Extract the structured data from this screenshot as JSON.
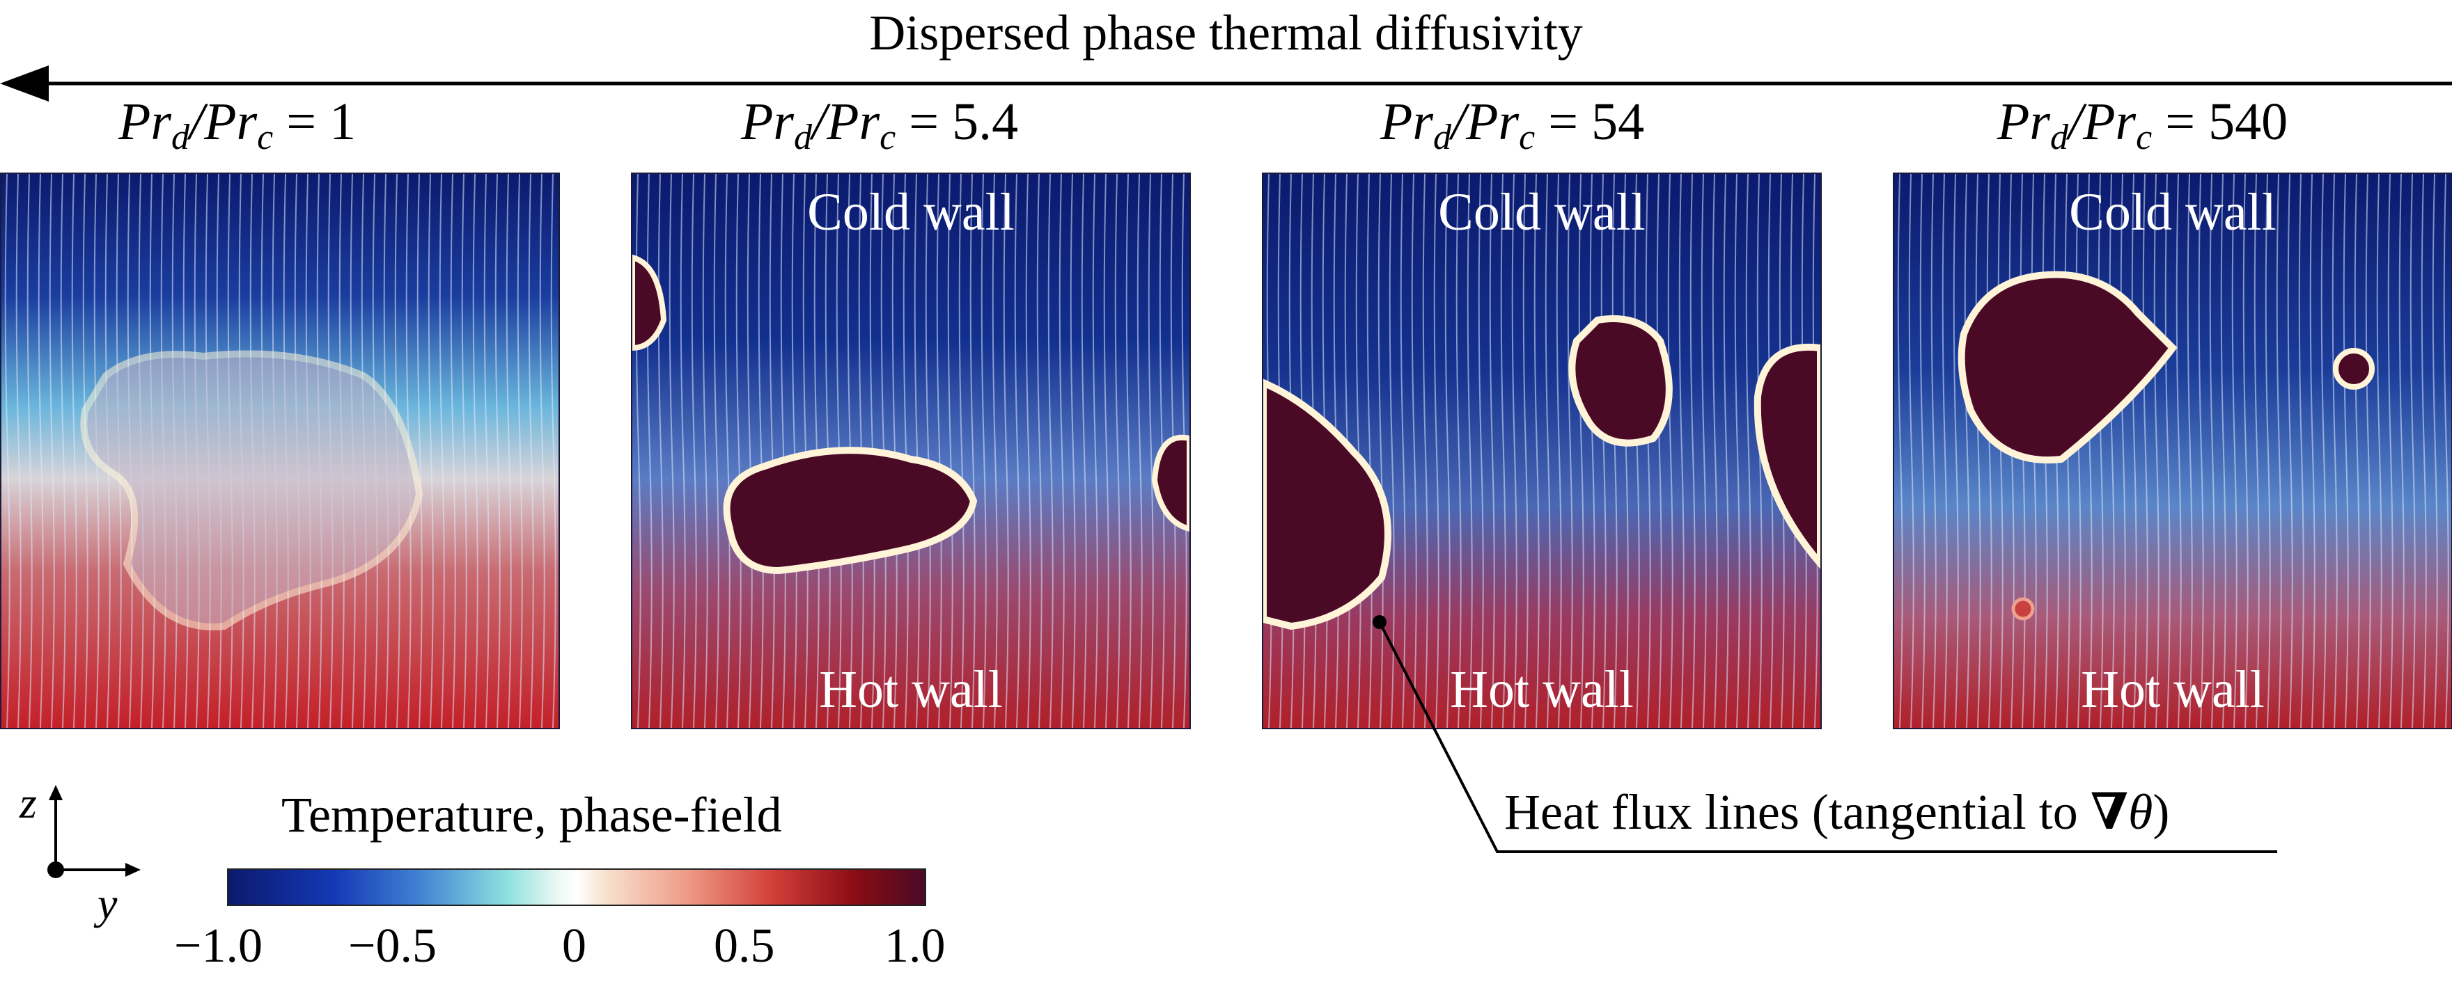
{
  "title": "Dispersed phase thermal diffusivity",
  "labels": [
    {
      "prefix": "Pr",
      "sub1": "d",
      "mid": "/Pr",
      "sub2": "c",
      "value": " = 1"
    },
    {
      "prefix": "Pr",
      "sub1": "d",
      "mid": "/Pr",
      "sub2": "c",
      "value": " = 5.4"
    },
    {
      "prefix": "Pr",
      "sub1": "d",
      "mid": "/Pr",
      "sub2": "c",
      "value": " = 54"
    },
    {
      "prefix": "Pr",
      "sub1": "d",
      "mid": "/Pr",
      "sub2": "c",
      "value": " = 540"
    }
  ],
  "walls": {
    "cold": "Cold wall",
    "hot": "Hot wall"
  },
  "colorbar": {
    "title": "Temperature, phase-field",
    "ticks": [
      "−1.0",
      "−0.5",
      "0",
      "0.5",
      "1.0"
    ]
  },
  "axes": {
    "z": "z",
    "y": "y"
  },
  "annotation": {
    "text": "Heat flux lines (tangential to ",
    "symbol": "∇",
    "var": "θ",
    "close": ")"
  },
  "colors": {
    "cold": "#0b1a6e",
    "hot": "#c8202a",
    "droplet": "#4a0a26",
    "interface": "#fff3d8"
  }
}
